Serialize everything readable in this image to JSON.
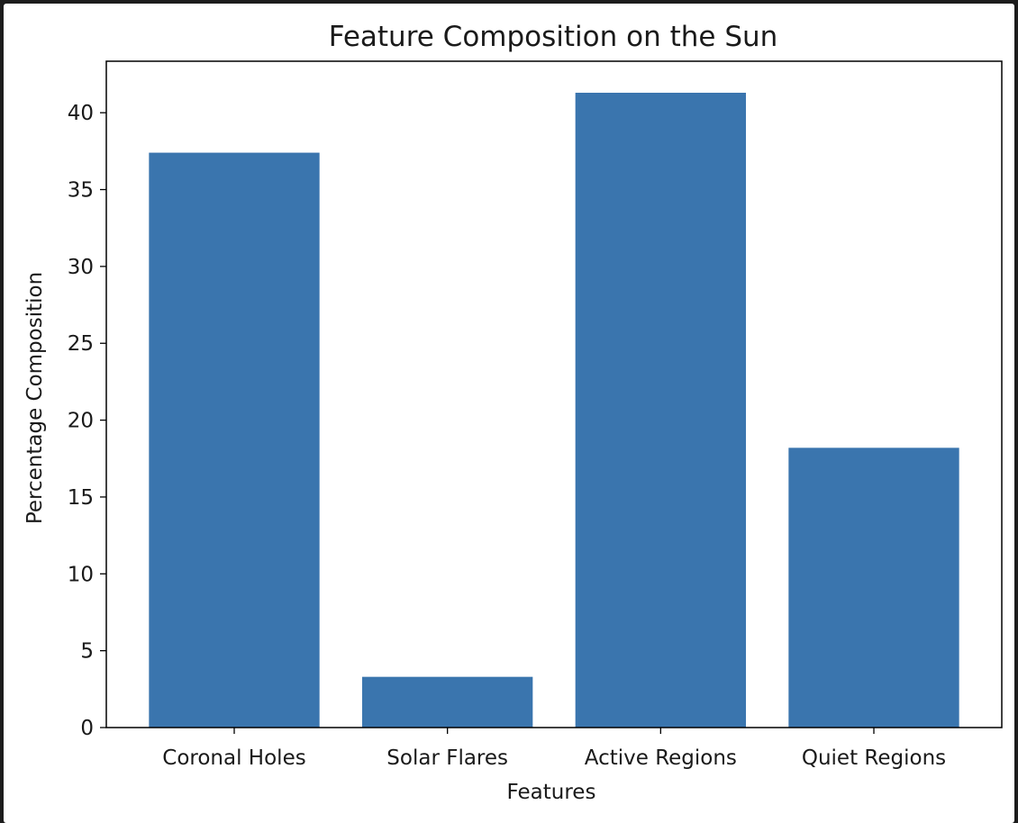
{
  "chart_data": {
    "type": "bar",
    "title": "Feature Composition on the Sun",
    "xlabel": "Features",
    "ylabel": "Percentage Composition",
    "categories": [
      "Coronal Holes",
      "Solar Flares",
      "Active Regions",
      "Quiet Regions"
    ],
    "values": [
      37.4,
      3.3,
      41.3,
      18.2
    ],
    "ylim": [
      0,
      43.35
    ],
    "yticks": [
      0,
      5,
      10,
      15,
      20,
      25,
      30,
      35,
      40
    ],
    "bar_color": "#3a75ae",
    "grid": false,
    "legend": null
  }
}
